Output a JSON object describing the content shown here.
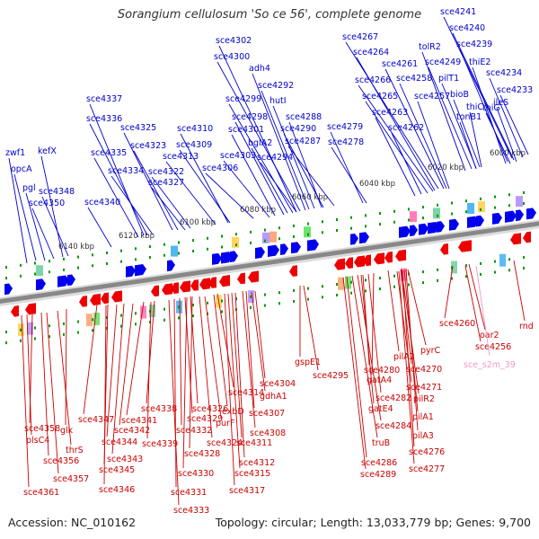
{
  "title": "Sorangium cellulosum 'So ce 56', complete genome",
  "footer": {
    "accession": "Accession: NC_010162",
    "topology": "Topology: circular; Length: 13,033,779 bp; Genes: 9,700"
  },
  "colors": {
    "forward_label": "#0000cc",
    "reverse_label": "#cc0000",
    "rna_label": "#ee99cc",
    "forward_gene": "#0000ee",
    "reverse_gene": "#ee0000",
    "backbone": "#888888",
    "tick": "#009900"
  },
  "ruler": [
    {
      "label": "6000 kbp"
    },
    {
      "label": "6020 kbp"
    },
    {
      "label": "6040 kbp"
    },
    {
      "label": "6060 kbp"
    },
    {
      "label": "6080 kbp"
    },
    {
      "label": "6100 kbp"
    },
    {
      "label": "6120 kbp"
    },
    {
      "label": "6140 kbp"
    }
  ],
  "forward_genes": [
    {
      "label": "sce4241"
    },
    {
      "label": "sce4240"
    },
    {
      "label": "sce4239"
    },
    {
      "label": "thiE2"
    },
    {
      "label": "sce4234"
    },
    {
      "label": "sce4233"
    },
    {
      "label": "ileS"
    },
    {
      "label": "thiG"
    },
    {
      "label": "tolR2"
    },
    {
      "label": "sce4249"
    },
    {
      "label": "pilT1"
    },
    {
      "label": "bioB"
    },
    {
      "label": "thiC"
    },
    {
      "label": "tonB1"
    },
    {
      "label": "sce4267"
    },
    {
      "label": "sce4264"
    },
    {
      "label": "sce4261"
    },
    {
      "label": "sce4266"
    },
    {
      "label": "sce4258"
    },
    {
      "label": "sce4265"
    },
    {
      "label": "sce4257"
    },
    {
      "label": "sce4263"
    },
    {
      "label": "sce4262"
    },
    {
      "label": "sce4302"
    },
    {
      "label": "sce4300"
    },
    {
      "label": "adh4"
    },
    {
      "label": "sce4292"
    },
    {
      "label": "sce4299"
    },
    {
      "label": "hutI"
    },
    {
      "label": "sce4298"
    },
    {
      "label": "sce4288"
    },
    {
      "label": "sce4301"
    },
    {
      "label": "sce4290"
    },
    {
      "label": "sce4279"
    },
    {
      "label": "bglA2"
    },
    {
      "label": "sce4287"
    },
    {
      "label": "sce4278"
    },
    {
      "label": "sce4303"
    },
    {
      "label": "sce4294"
    },
    {
      "label": "sce4310"
    },
    {
      "label": "sce4309"
    },
    {
      "label": "sce4313"
    },
    {
      "label": "sce4306"
    },
    {
      "label": "sce4337"
    },
    {
      "label": "sce4336"
    },
    {
      "label": "sce4325"
    },
    {
      "label": "sce4323"
    },
    {
      "label": "sce4335"
    },
    {
      "label": "sce4334"
    },
    {
      "label": "sce4322"
    },
    {
      "label": "sce4327"
    },
    {
      "label": "zwf1"
    },
    {
      "label": "opcA"
    },
    {
      "label": "kefX"
    },
    {
      "label": "pgl"
    },
    {
      "label": "sce4348"
    },
    {
      "label": "sce4350"
    },
    {
      "label": "sce4340"
    }
  ],
  "reverse_genes": [
    {
      "label": "sce4260"
    },
    {
      "label": "oar2"
    },
    {
      "label": "rnd"
    },
    {
      "label": "sce4256"
    },
    {
      "label": "pyrC"
    },
    {
      "label": "pilA2"
    },
    {
      "label": "sce4270"
    },
    {
      "label": "gatA4"
    },
    {
      "label": "sce4271"
    },
    {
      "label": "pilR2"
    },
    {
      "label": "sce4280"
    },
    {
      "label": "sce4282"
    },
    {
      "label": "gatE4"
    },
    {
      "label": "pilA1"
    },
    {
      "label": "sce4284"
    },
    {
      "label": "pilA3"
    },
    {
      "label": "truB"
    },
    {
      "label": "sce4276"
    },
    {
      "label": "sce4286"
    },
    {
      "label": "sce4277"
    },
    {
      "label": "sce4289"
    },
    {
      "label": "gspE1"
    },
    {
      "label": "sce4295"
    },
    {
      "label": "sce4304"
    },
    {
      "label": "gdhA1"
    },
    {
      "label": "sce4314"
    },
    {
      "label": "exbD"
    },
    {
      "label": "sce4307"
    },
    {
      "label": "purF"
    },
    {
      "label": "sce4308"
    },
    {
      "label": "sce4326"
    },
    {
      "label": "sce4329"
    },
    {
      "label": "sce4332"
    },
    {
      "label": "sce4324"
    },
    {
      "label": "sce4311"
    },
    {
      "label": "sce4328"
    },
    {
      "label": "sce4312"
    },
    {
      "label": "sce4330"
    },
    {
      "label": "sce4315"
    },
    {
      "label": "sce4331"
    },
    {
      "label": "sce4317"
    },
    {
      "label": "sce4333"
    },
    {
      "label": "sce4338"
    },
    {
      "label": "sce4341"
    },
    {
      "label": "sce4347"
    },
    {
      "label": "sce4342"
    },
    {
      "label": "sce4339"
    },
    {
      "label": "sce4344"
    },
    {
      "label": "sce4343"
    },
    {
      "label": "sce4345"
    },
    {
      "label": "sce4346"
    },
    {
      "label": "sce4358"
    },
    {
      "label": "plsC4"
    },
    {
      "label": "glk"
    },
    {
      "label": "thrS"
    },
    {
      "label": "sce4356"
    },
    {
      "label": "sce4357"
    },
    {
      "label": "sce4361"
    }
  ],
  "rna_genes": [
    {
      "label": "sce_s2m_39"
    }
  ]
}
